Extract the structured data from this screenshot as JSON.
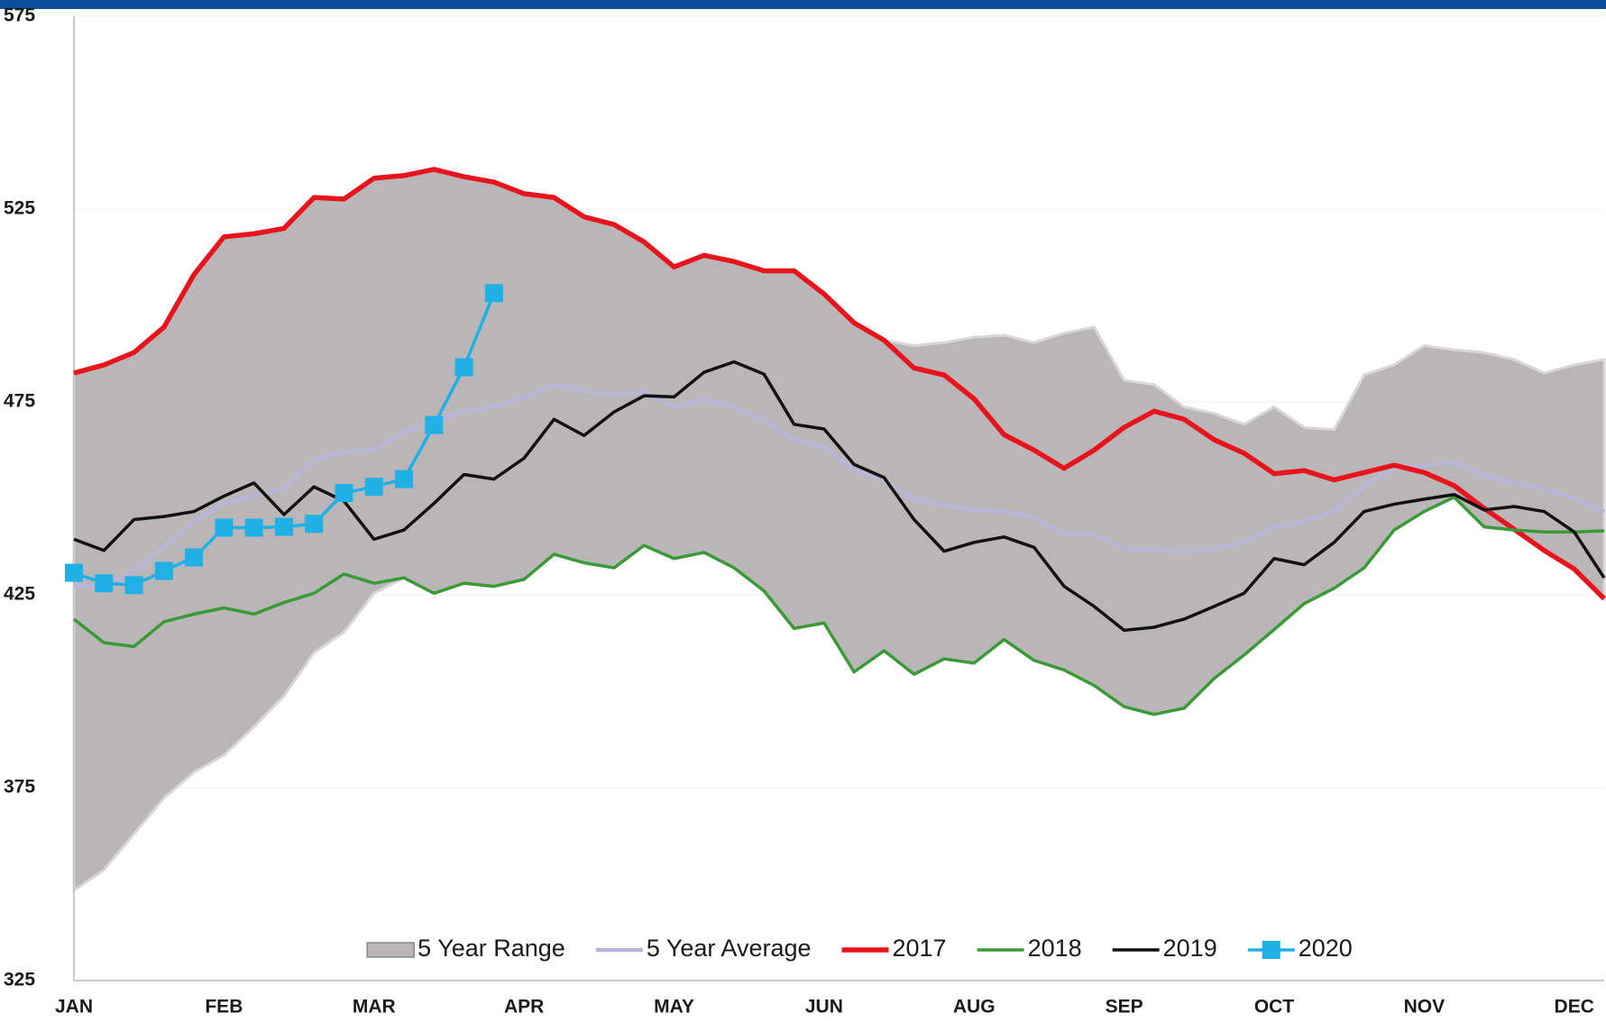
{
  "chart_data": {
    "type": "line",
    "categories": [
      "JAN",
      null,
      null,
      null,
      null,
      "FEB",
      null,
      null,
      null,
      null,
      "MAR",
      null,
      null,
      null,
      null,
      "APR",
      null,
      null,
      null,
      null,
      "MAY",
      null,
      null,
      null,
      null,
      "JUN",
      null,
      null,
      null,
      null,
      "AUG",
      null,
      null,
      null,
      null,
      "SEP",
      null,
      null,
      null,
      null,
      "OCT",
      null,
      null,
      null,
      null,
      "NOV",
      null,
      null,
      null,
      null,
      "DEC",
      null
    ],
    "ylim": [
      325,
      575
    ],
    "yticks": [
      325,
      375,
      425,
      475,
      525,
      575
    ],
    "grid": true,
    "range": {
      "name": "5 Year Range",
      "color": "#bab6b8",
      "high": [
        482.5,
        484.6,
        487.8,
        494.4,
        508,
        517.8,
        518.6,
        520,
        528,
        527.6,
        533,
        533.7,
        535.3,
        533.4,
        532,
        529,
        528,
        523,
        521,
        516.5,
        510,
        513,
        511.4,
        509,
        509,
        503,
        495.5,
        491,
        489.6,
        490.4,
        491.8,
        492.3,
        490.4,
        492.8,
        494.4,
        480.6,
        479.5,
        473.7,
        472,
        469.2,
        473.7,
        468.4,
        467.8,
        482,
        484.6,
        489.6,
        488.5,
        487.8,
        486,
        482.5,
        484.6,
        486
      ],
      "low": [
        348.4,
        353.7,
        363,
        372.3,
        379,
        383.4,
        390.8,
        398.8,
        410,
        415.3,
        425.4,
        429.4,
        425.4,
        428,
        427.2,
        429,
        435.5,
        433.3,
        432,
        437.8,
        434.4,
        436,
        432,
        426,
        416.3,
        417.7,
        405,
        410.5,
        404.4,
        408.4,
        407.3,
        413.4,
        408,
        405.5,
        401.5,
        396,
        394,
        395.6,
        403.3,
        409.4,
        416,
        422.7,
        426.7,
        432,
        441.8,
        446.6,
        450.3,
        442.6,
        441.8,
        436.5,
        431.7,
        424
      ]
    },
    "series": [
      {
        "name": "5 Year Average",
        "color": "#b9b5d9",
        "width": 4.5,
        "values": [
          427.5,
          427.2,
          431.2,
          437.3,
          444,
          448.7,
          450.6,
          452.5,
          460,
          462,
          462.6,
          467.3,
          470,
          472.6,
          473.7,
          476.3,
          479.5,
          477.7,
          477,
          477.7,
          473.7,
          475.8,
          473.7,
          470,
          465.2,
          463.3,
          457.2,
          454.6,
          449.8,
          448.2,
          447,
          446.6,
          445,
          440.8,
          440.8,
          437,
          436.8,
          436,
          437,
          438.6,
          442.6,
          444,
          446.6,
          453.3,
          457.8,
          458.6,
          459.2,
          455.9,
          454,
          452.5,
          450,
          446.6
        ]
      },
      {
        "name": "2017",
        "color": "#e8141b",
        "width": 5.5,
        "values": [
          482.5,
          484.6,
          487.8,
          494.4,
          508,
          517.8,
          518.6,
          520,
          528,
          527.6,
          533,
          533.7,
          535.3,
          533.4,
          532,
          529,
          528,
          523,
          521,
          516.5,
          510,
          513,
          511.4,
          509,
          509,
          503,
          495.5,
          491,
          483.8,
          482,
          475.8,
          466.5,
          462.5,
          457.8,
          462.5,
          468.4,
          472.6,
          470.5,
          465.2,
          461.7,
          456.4,
          457.2,
          454.8,
          456.7,
          458.6,
          456.7,
          453.3,
          447.4,
          442,
          436.5,
          431.7,
          424
        ]
      },
      {
        "name": "2018",
        "color": "#3a9a35",
        "width": 3.5,
        "values": [
          418.7,
          412.6,
          411.6,
          418,
          420,
          421.6,
          420,
          423,
          425.4,
          430.4,
          428,
          429.4,
          425.4,
          428,
          427.2,
          429,
          435.5,
          433.3,
          432,
          437.8,
          434.4,
          436,
          432,
          426,
          416.3,
          417.7,
          405,
          410.5,
          404.4,
          408.4,
          407.3,
          413.4,
          408,
          405.5,
          401.5,
          396,
          394,
          395.6,
          403.3,
          409.4,
          416,
          422.7,
          426.7,
          432,
          441.8,
          446.6,
          450.3,
          442.6,
          441.8,
          441.3,
          441.3,
          441.6
        ]
      },
      {
        "name": "2019",
        "color": "#111111",
        "width": 3.5,
        "values": [
          439.4,
          436.5,
          444.5,
          445.3,
          446.6,
          450.6,
          454,
          445.8,
          453,
          449.3,
          439.4,
          441.8,
          448.7,
          456.2,
          455,
          460.4,
          470.5,
          466.3,
          472.4,
          476.6,
          476.3,
          482.7,
          485.4,
          482.2,
          469.2,
          468,
          458.8,
          455.4,
          444.5,
          436.3,
          438.6,
          440,
          437.3,
          427.2,
          422,
          415.8,
          416.6,
          418.7,
          422,
          425.4,
          434.4,
          432.8,
          438.6,
          446.6,
          448.5,
          449.8,
          451,
          447,
          447.9,
          446.6,
          441.3,
          429.4
        ]
      },
      {
        "name": "2020",
        "color": "#1fb0e6",
        "width": 3.5,
        "marker": "square",
        "values": [
          430.7,
          428,
          427.5,
          431.2,
          434.7,
          442.4,
          442.4,
          442.6,
          443.4,
          451.4,
          453,
          455,
          469,
          484,
          503.2,
          null,
          null,
          null,
          null,
          null,
          null,
          null,
          null,
          null,
          null,
          null,
          null,
          null,
          null,
          null,
          null,
          null,
          null,
          null,
          null,
          null,
          null,
          null,
          null,
          null,
          null,
          null,
          null,
          null,
          null,
          null,
          null,
          null,
          null,
          null,
          null,
          null
        ]
      }
    ]
  }
}
